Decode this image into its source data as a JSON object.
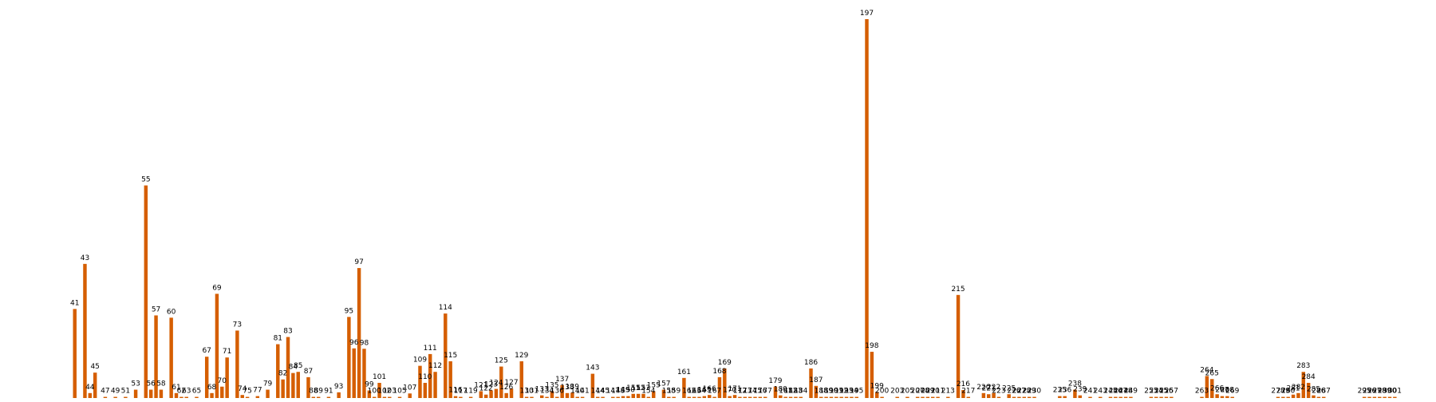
{
  "chart_data": {
    "type": "bar",
    "title": "",
    "xlabel": "",
    "ylabel": "",
    "bar_color": "#d55e00",
    "label_color": "#000000",
    "background": "#ffffff",
    "grid": false,
    "legend": "none",
    "axes_visible": false,
    "xlim": [
      33.5,
      305.5
    ],
    "ylim": [
      0,
      1.0
    ],
    "bars": [
      {
        "x": 41,
        "y": 0.235
      },
      {
        "x": 43,
        "y": 0.354
      },
      {
        "x": 44,
        "y": 0.013
      },
      {
        "x": 45,
        "y": 0.067
      },
      {
        "x": 47,
        "y": 0.003
      },
      {
        "x": 49,
        "y": 0.003
      },
      {
        "x": 51,
        "y": 0.003
      },
      {
        "x": 53,
        "y": 0.022
      },
      {
        "x": 55,
        "y": 0.561
      },
      {
        "x": 56,
        "y": 0.022
      },
      {
        "x": 57,
        "y": 0.218
      },
      {
        "x": 58,
        "y": 0.022
      },
      {
        "x": 60,
        "y": 0.212
      },
      {
        "x": 61,
        "y": 0.013
      },
      {
        "x": 62,
        "y": 0.003
      },
      {
        "x": 63,
        "y": 0.003
      },
      {
        "x": 65,
        "y": 0.003
      },
      {
        "x": 67,
        "y": 0.109
      },
      {
        "x": 68,
        "y": 0.013
      },
      {
        "x": 69,
        "y": 0.275
      },
      {
        "x": 70,
        "y": 0.03
      },
      {
        "x": 71,
        "y": 0.107
      },
      {
        "x": 73,
        "y": 0.178
      },
      {
        "x": 74,
        "y": 0.008
      },
      {
        "x": 75,
        "y": 0.003
      },
      {
        "x": 77,
        "y": 0.005
      },
      {
        "x": 79,
        "y": 0.022
      },
      {
        "x": 81,
        "y": 0.142
      },
      {
        "x": 82,
        "y": 0.049
      },
      {
        "x": 83,
        "y": 0.161
      },
      {
        "x": 84,
        "y": 0.066
      },
      {
        "x": 85,
        "y": 0.069
      },
      {
        "x": 87,
        "y": 0.055
      },
      {
        "x": 88,
        "y": 0.003
      },
      {
        "x": 89,
        "y": 0.003
      },
      {
        "x": 91,
        "y": 0.003
      },
      {
        "x": 93,
        "y": 0.015
      },
      {
        "x": 95,
        "y": 0.214
      },
      {
        "x": 96,
        "y": 0.131
      },
      {
        "x": 97,
        "y": 0.343
      },
      {
        "x": 98,
        "y": 0.13
      },
      {
        "x": 99,
        "y": 0.02
      },
      {
        "x": 100,
        "y": 0.003
      },
      {
        "x": 101,
        "y": 0.04
      },
      {
        "x": 102,
        "y": 0.003
      },
      {
        "x": 103,
        "y": 0.003
      },
      {
        "x": 105,
        "y": 0.003
      },
      {
        "x": 107,
        "y": 0.012
      },
      {
        "x": 109,
        "y": 0.085
      },
      {
        "x": 110,
        "y": 0.04
      },
      {
        "x": 111,
        "y": 0.116
      },
      {
        "x": 112,
        "y": 0.069
      },
      {
        "x": 114,
        "y": 0.223
      },
      {
        "x": 115,
        "y": 0.097
      },
      {
        "x": 116,
        "y": 0.005
      },
      {
        "x": 117,
        "y": 0.003
      },
      {
        "x": 119,
        "y": 0.003
      },
      {
        "x": 121,
        "y": 0.018
      },
      {
        "x": 122,
        "y": 0.009
      },
      {
        "x": 123,
        "y": 0.02
      },
      {
        "x": 124,
        "y": 0.024
      },
      {
        "x": 125,
        "y": 0.083
      },
      {
        "x": 126,
        "y": 0.013
      },
      {
        "x": 127,
        "y": 0.025
      },
      {
        "x": 129,
        "y": 0.097
      },
      {
        "x": 130,
        "y": 0.003
      },
      {
        "x": 131,
        "y": 0.003
      },
      {
        "x": 133,
        "y": 0.007
      },
      {
        "x": 134,
        "y": 0.003
      },
      {
        "x": 135,
        "y": 0.018
      },
      {
        "x": 136,
        "y": 0.003
      },
      {
        "x": 137,
        "y": 0.034
      },
      {
        "x": 138,
        "y": 0.013
      },
      {
        "x": 139,
        "y": 0.014
      },
      {
        "x": 140,
        "y": 0.003
      },
      {
        "x": 141,
        "y": 0.003
      },
      {
        "x": 143,
        "y": 0.064
      },
      {
        "x": 144,
        "y": 0.003
      },
      {
        "x": 145,
        "y": 0.003
      },
      {
        "x": 147,
        "y": 0.003
      },
      {
        "x": 148,
        "y": 0.003
      },
      {
        "x": 149,
        "y": 0.005
      },
      {
        "x": 150,
        "y": 0.005
      },
      {
        "x": 151,
        "y": 0.011
      },
      {
        "x": 152,
        "y": 0.011
      },
      {
        "x": 153,
        "y": 0.011
      },
      {
        "x": 154,
        "y": 0.003
      },
      {
        "x": 155,
        "y": 0.018
      },
      {
        "x": 157,
        "y": 0.022
      },
      {
        "x": 158,
        "y": 0.003
      },
      {
        "x": 159,
        "y": 0.003
      },
      {
        "x": 161,
        "y": 0.053
      },
      {
        "x": 162,
        "y": 0.003
      },
      {
        "x": 163,
        "y": 0.003
      },
      {
        "x": 164,
        "y": 0.003
      },
      {
        "x": 165,
        "y": 0.005
      },
      {
        "x": 166,
        "y": 0.008
      },
      {
        "x": 167,
        "y": 0.003
      },
      {
        "x": 168,
        "y": 0.055
      },
      {
        "x": 169,
        "y": 0.078
      },
      {
        "x": 170,
        "y": 0.005
      },
      {
        "x": 171,
        "y": 0.008
      },
      {
        "x": 172,
        "y": 0.003
      },
      {
        "x": 173,
        "y": 0.003
      },
      {
        "x": 174,
        "y": 0.003
      },
      {
        "x": 175,
        "y": 0.003
      },
      {
        "x": 176,
        "y": 0.003
      },
      {
        "x": 177,
        "y": 0.003
      },
      {
        "x": 179,
        "y": 0.03
      },
      {
        "x": 180,
        "y": 0.007
      },
      {
        "x": 181,
        "y": 0.003
      },
      {
        "x": 182,
        "y": 0.003
      },
      {
        "x": 183,
        "y": 0.003
      },
      {
        "x": 184,
        "y": 0.003
      },
      {
        "x": 186,
        "y": 0.078
      },
      {
        "x": 187,
        "y": 0.032
      },
      {
        "x": 188,
        "y": 0.003
      },
      {
        "x": 189,
        "y": 0.003
      },
      {
        "x": 190,
        "y": 0.003
      },
      {
        "x": 191,
        "y": 0.003
      },
      {
        "x": 192,
        "y": 0.003
      },
      {
        "x": 193,
        "y": 0.003
      },
      {
        "x": 194,
        "y": 0.003
      },
      {
        "x": 195,
        "y": 0.003
      },
      {
        "x": 197,
        "y": 1.0
      },
      {
        "x": 198,
        "y": 0.122
      },
      {
        "x": 199,
        "y": 0.016
      },
      {
        "x": 200,
        "y": 0.003
      },
      {
        "x": 203,
        "y": 0.003
      },
      {
        "x": 205,
        "y": 0.003
      },
      {
        "x": 207,
        "y": 0.003
      },
      {
        "x": 208,
        "y": 0.003
      },
      {
        "x": 209,
        "y": 0.003
      },
      {
        "x": 210,
        "y": 0.003
      },
      {
        "x": 211,
        "y": 0.003
      },
      {
        "x": 213,
        "y": 0.003
      },
      {
        "x": 215,
        "y": 0.272
      },
      {
        "x": 216,
        "y": 0.021
      },
      {
        "x": 217,
        "y": 0.003
      },
      {
        "x": 220,
        "y": 0.013
      },
      {
        "x": 221,
        "y": 0.01
      },
      {
        "x": 222,
        "y": 0.013
      },
      {
        "x": 223,
        "y": 0.003
      },
      {
        "x": 225,
        "y": 0.01
      },
      {
        "x": 226,
        "y": 0.003
      },
      {
        "x": 227,
        "y": 0.003
      },
      {
        "x": 228,
        "y": 0.003
      },
      {
        "x": 229,
        "y": 0.003
      },
      {
        "x": 230,
        "y": 0.003
      },
      {
        "x": 235,
        "y": 0.005
      },
      {
        "x": 236,
        "y": 0.005
      },
      {
        "x": 238,
        "y": 0.022
      },
      {
        "x": 239,
        "y": 0.007
      },
      {
        "x": 241,
        "y": 0.003
      },
      {
        "x": 243,
        "y": 0.003
      },
      {
        "x": 245,
        "y": 0.003
      },
      {
        "x": 246,
        "y": 0.003
      },
      {
        "x": 247,
        "y": 0.003
      },
      {
        "x": 248,
        "y": 0.003
      },
      {
        "x": 249,
        "y": 0.003
      },
      {
        "x": 253,
        "y": 0.003
      },
      {
        "x": 254,
        "y": 0.003
      },
      {
        "x": 255,
        "y": 0.003
      },
      {
        "x": 256,
        "y": 0.003
      },
      {
        "x": 257,
        "y": 0.003
      },
      {
        "x": 263,
        "y": 0.003
      },
      {
        "x": 264,
        "y": 0.058
      },
      {
        "x": 265,
        "y": 0.05
      },
      {
        "x": 266,
        "y": 0.01
      },
      {
        "x": 267,
        "y": 0.005
      },
      {
        "x": 268,
        "y": 0.005
      },
      {
        "x": 269,
        "y": 0.003
      },
      {
        "x": 278,
        "y": 0.003
      },
      {
        "x": 279,
        "y": 0.003
      },
      {
        "x": 280,
        "y": 0.003
      },
      {
        "x": 281,
        "y": 0.009
      },
      {
        "x": 282,
        "y": 0.013
      },
      {
        "x": 283,
        "y": 0.069
      },
      {
        "x": 284,
        "y": 0.04
      },
      {
        "x": 285,
        "y": 0.007
      },
      {
        "x": 286,
        "y": 0.003
      },
      {
        "x": 287,
        "y": 0.003
      },
      {
        "x": 295,
        "y": 0.003
      },
      {
        "x": 296,
        "y": 0.003
      },
      {
        "x": 297,
        "y": 0.003
      },
      {
        "x": 298,
        "y": 0.003
      },
      {
        "x": 299,
        "y": 0.003
      },
      {
        "x": 300,
        "y": 0.003
      },
      {
        "x": 301,
        "y": 0.003
      }
    ]
  }
}
